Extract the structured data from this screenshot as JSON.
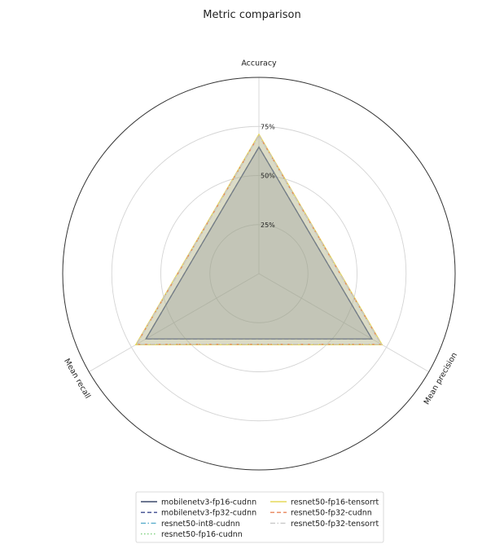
{
  "chart_data": {
    "type": "radar",
    "title": "Metric comparison",
    "axes": [
      "Accuracy",
      "Mean precision",
      "Mean recall"
    ],
    "radial_ticks": [
      {
        "value": 25,
        "label": "25%"
      },
      {
        "value": 50,
        "label": "50%"
      },
      {
        "value": 75,
        "label": "75%"
      }
    ],
    "rlim": [
      0,
      100
    ],
    "grid": true,
    "legend_position": "bottom-center",
    "series": [
      {
        "name": "mobilenetv3-fp16-cudnn",
        "values": [
          64.5,
          66.5,
          66.5
        ],
        "color": "#3b4a6b",
        "dash": "solid"
      },
      {
        "name": "mobilenetv3-fp32-cudnn",
        "values": [
          64.5,
          66.5,
          66.5
        ],
        "color": "#3b4a8f",
        "dash": "dashed"
      },
      {
        "name": "resnet50-int8-cudnn",
        "values": [
          70.5,
          72.0,
          72.0
        ],
        "color": "#5aaecc",
        "dash": "dashdot"
      },
      {
        "name": "resnet50-fp16-cudnn",
        "values": [
          70.5,
          72.0,
          72.0
        ],
        "color": "#7ccf7c",
        "dash": "dotted"
      },
      {
        "name": "resnet50-fp16-tensorrt",
        "values": [
          71.0,
          72.5,
          72.5
        ],
        "color": "#e6d85a",
        "dash": "solid"
      },
      {
        "name": "resnet50-fp32-cudnn",
        "values": [
          70.5,
          72.0,
          72.0
        ],
        "color": "#e8855a",
        "dash": "dashed"
      },
      {
        "name": "resnet50-fp32-tensorrt",
        "values": [
          70.5,
          72.0,
          72.0
        ],
        "color": "#c9c9c9",
        "dash": "dashdot"
      }
    ]
  }
}
